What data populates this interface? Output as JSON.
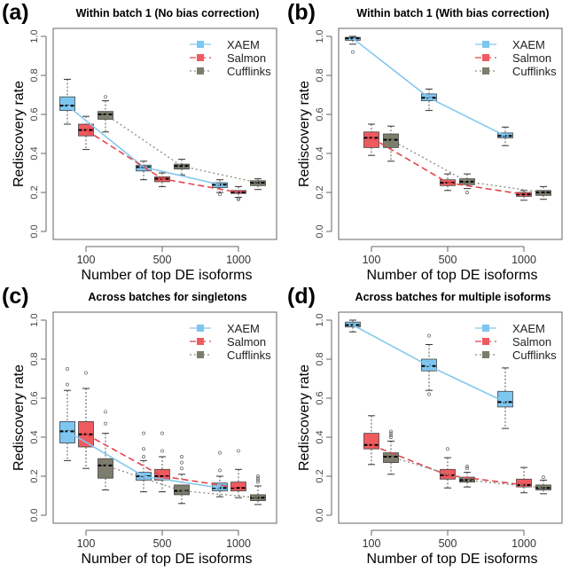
{
  "chart_data": [
    {
      "type": "boxplot",
      "panel_label": "(a)",
      "title": "Within batch 1 (No bias correction)",
      "xlabel": "Number of top DE isoforms",
      "ylabel": "Rediscovery rate",
      "ylim": [
        0,
        1
      ],
      "yticks": [
        "0.0",
        "0.2",
        "0.4",
        "0.6",
        "0.8",
        "1.0"
      ],
      "categories": [
        "100",
        "500",
        "1000"
      ],
      "legend": "top-right",
      "series": [
        {
          "name": "XAEM",
          "boxes": [
            {
              "min": 0.55,
              "q1": 0.62,
              "median": 0.645,
              "q3": 0.69,
              "max": 0.78,
              "outliers": []
            },
            {
              "min": 0.265,
              "q1": 0.31,
              "median": 0.33,
              "q3": 0.34,
              "max": 0.36,
              "outliers": []
            },
            {
              "min": 0.2,
              "q1": 0.225,
              "median": 0.24,
              "q3": 0.25,
              "max": 0.265,
              "outliers": [
                0.19
              ]
            }
          ]
        },
        {
          "name": "Salmon",
          "boxes": [
            {
              "min": 0.42,
              "q1": 0.49,
              "median": 0.52,
              "q3": 0.55,
              "max": 0.59,
              "outliers": []
            },
            {
              "min": 0.23,
              "q1": 0.255,
              "median": 0.27,
              "q3": 0.28,
              "max": 0.3,
              "outliers": []
            },
            {
              "min": 0.175,
              "q1": 0.195,
              "median": 0.2,
              "q3": 0.21,
              "max": 0.23,
              "outliers": [
                0.165,
                0.17
              ]
            }
          ]
        },
        {
          "name": "Cufflinks",
          "boxes": [
            {
              "min": 0.51,
              "q1": 0.575,
              "median": 0.6,
              "q3": 0.615,
              "max": 0.67,
              "outliers": [
                0.69
              ]
            },
            {
              "min": 0.29,
              "q1": 0.32,
              "median": 0.335,
              "q3": 0.345,
              "max": 0.37,
              "outliers": []
            },
            {
              "min": 0.215,
              "q1": 0.235,
              "median": 0.25,
              "q3": 0.26,
              "max": 0.27,
              "outliers": []
            }
          ]
        }
      ]
    },
    {
      "type": "boxplot",
      "panel_label": "(b)",
      "title": "Within batch 1 (With bias correction)",
      "xlabel": "Number of top DE isoforms",
      "ylabel": "Rediscovery rate",
      "ylim": [
        0,
        1
      ],
      "yticks": [
        "0.0",
        "0.2",
        "0.4",
        "0.6",
        "0.8",
        "1.0"
      ],
      "categories": [
        "100",
        "500",
        "1000"
      ],
      "legend": "top-right",
      "series": [
        {
          "name": "XAEM",
          "boxes": [
            {
              "min": 0.96,
              "q1": 0.98,
              "median": 0.99,
              "q3": 0.995,
              "max": 1.0,
              "outliers": [
                0.92
              ]
            },
            {
              "min": 0.62,
              "q1": 0.67,
              "median": 0.685,
              "q3": 0.705,
              "max": 0.73,
              "outliers": []
            },
            {
              "min": 0.44,
              "q1": 0.48,
              "median": 0.49,
              "q3": 0.505,
              "max": 0.535,
              "outliers": []
            }
          ]
        },
        {
          "name": "Salmon",
          "boxes": [
            {
              "min": 0.39,
              "q1": 0.43,
              "median": 0.48,
              "q3": 0.51,
              "max": 0.55,
              "outliers": []
            },
            {
              "min": 0.21,
              "q1": 0.235,
              "median": 0.25,
              "q3": 0.265,
              "max": 0.295,
              "outliers": []
            },
            {
              "min": 0.16,
              "q1": 0.18,
              "median": 0.19,
              "q3": 0.2,
              "max": 0.21,
              "outliers": []
            }
          ]
        },
        {
          "name": "Cufflinks",
          "boxes": [
            {
              "min": 0.36,
              "q1": 0.43,
              "median": 0.47,
              "q3": 0.5,
              "max": 0.54,
              "outliers": []
            },
            {
              "min": 0.22,
              "q1": 0.24,
              "median": 0.255,
              "q3": 0.27,
              "max": 0.295,
              "outliers": [
                0.2
              ]
            },
            {
              "min": 0.165,
              "q1": 0.185,
              "median": 0.2,
              "q3": 0.21,
              "max": 0.23,
              "outliers": []
            }
          ]
        }
      ]
    },
    {
      "type": "boxplot",
      "panel_label": "(c)",
      "title": "Across batches for singletons",
      "xlabel": "Number of top DE isoforms",
      "ylabel": "Rediscovery rate",
      "ylim": [
        0,
        1
      ],
      "yticks": [
        "0.0",
        "0.2",
        "0.4",
        "0.6",
        "0.8",
        "1.0"
      ],
      "categories": [
        "100",
        "500",
        "1000"
      ],
      "legend": "top-right",
      "series": [
        {
          "name": "XAEM",
          "boxes": [
            {
              "min": 0.28,
              "q1": 0.37,
              "median": 0.43,
              "q3": 0.48,
              "max": 0.64,
              "outliers": [
                0.67,
                0.75
              ]
            },
            {
              "min": 0.12,
              "q1": 0.18,
              "median": 0.2,
              "q3": 0.22,
              "max": 0.28,
              "outliers": [
                0.3,
                0.34,
                0.42
              ]
            },
            {
              "min": 0.095,
              "q1": 0.125,
              "median": 0.14,
              "q3": 0.165,
              "max": 0.2,
              "outliers": [
                0.23,
                0.32
              ]
            }
          ]
        },
        {
          "name": "Salmon",
          "boxes": [
            {
              "min": 0.24,
              "q1": 0.35,
              "median": 0.415,
              "q3": 0.48,
              "max": 0.65,
              "outliers": [
                0.73
              ]
            },
            {
              "min": 0.12,
              "q1": 0.18,
              "median": 0.2,
              "q3": 0.235,
              "max": 0.3,
              "outliers": [
                0.33,
                0.42
              ]
            },
            {
              "min": 0.09,
              "q1": 0.125,
              "median": 0.14,
              "q3": 0.17,
              "max": 0.235,
              "outliers": [
                0.33
              ]
            }
          ]
        },
        {
          "name": "Cufflinks",
          "boxes": [
            {
              "min": 0.13,
              "q1": 0.19,
              "median": 0.255,
              "q3": 0.29,
              "max": 0.42,
              "outliers": [
                0.47,
                0.53
              ]
            },
            {
              "min": 0.06,
              "q1": 0.105,
              "median": 0.125,
              "q3": 0.155,
              "max": 0.21,
              "outliers": [
                0.24,
                0.27,
                0.3
              ]
            },
            {
              "min": 0.055,
              "q1": 0.075,
              "median": 0.09,
              "q3": 0.105,
              "max": 0.15,
              "outliers": [
                0.17,
                0.18,
                0.19,
                0.2
              ]
            }
          ]
        }
      ]
    },
    {
      "type": "boxplot",
      "panel_label": "(d)",
      "title": "Across batches for multiple isoforms",
      "xlabel": "Number of top DE isoforms",
      "ylabel": "Rediscovery rate",
      "ylim": [
        0,
        1
      ],
      "yticks": [
        "0.0",
        "0.2",
        "0.4",
        "0.6",
        "0.8",
        "1.0"
      ],
      "categories": [
        "100",
        "500",
        "1000"
      ],
      "legend": "top-right",
      "series": [
        {
          "name": "XAEM",
          "boxes": [
            {
              "min": 0.94,
              "q1": 0.965,
              "median": 0.975,
              "q3": 0.99,
              "max": 1.0,
              "outliers": []
            },
            {
              "min": 0.64,
              "q1": 0.74,
              "median": 0.765,
              "q3": 0.8,
              "max": 0.875,
              "outliers": [
                0.62,
                0.92
              ]
            },
            {
              "min": 0.445,
              "q1": 0.555,
              "median": 0.58,
              "q3": 0.635,
              "max": 0.755,
              "outliers": []
            }
          ]
        },
        {
          "name": "Salmon",
          "boxes": [
            {
              "min": 0.26,
              "q1": 0.34,
              "median": 0.36,
              "q3": 0.42,
              "max": 0.51,
              "outliers": []
            },
            {
              "min": 0.14,
              "q1": 0.185,
              "median": 0.205,
              "q3": 0.235,
              "max": 0.295,
              "outliers": [
                0.34
              ]
            },
            {
              "min": 0.115,
              "q1": 0.145,
              "median": 0.155,
              "q3": 0.185,
              "max": 0.245,
              "outliers": []
            }
          ]
        },
        {
          "name": "Cufflinks",
          "boxes": [
            {
              "min": 0.21,
              "q1": 0.27,
              "median": 0.3,
              "q3": 0.32,
              "max": 0.38,
              "outliers": [
                0.4,
                0.41,
                0.42,
                0.43
              ]
            },
            {
              "min": 0.145,
              "q1": 0.17,
              "median": 0.18,
              "q3": 0.195,
              "max": 0.22,
              "outliers": [
                0.24,
                0.25
              ]
            },
            {
              "min": 0.11,
              "q1": 0.13,
              "median": 0.14,
              "q3": 0.155,
              "max": 0.18,
              "outliers": [
                0.195
              ]
            }
          ]
        }
      ]
    }
  ],
  "colors": {
    "XAEM": "#7cc6f0",
    "Salmon": "#ef5a5f",
    "Cufflinks": "#7d7d6d",
    "XAEM_line": "#86c8ee",
    "Salmon_line": "#e2454d",
    "Cufflinks_line": "#8a8a80"
  }
}
